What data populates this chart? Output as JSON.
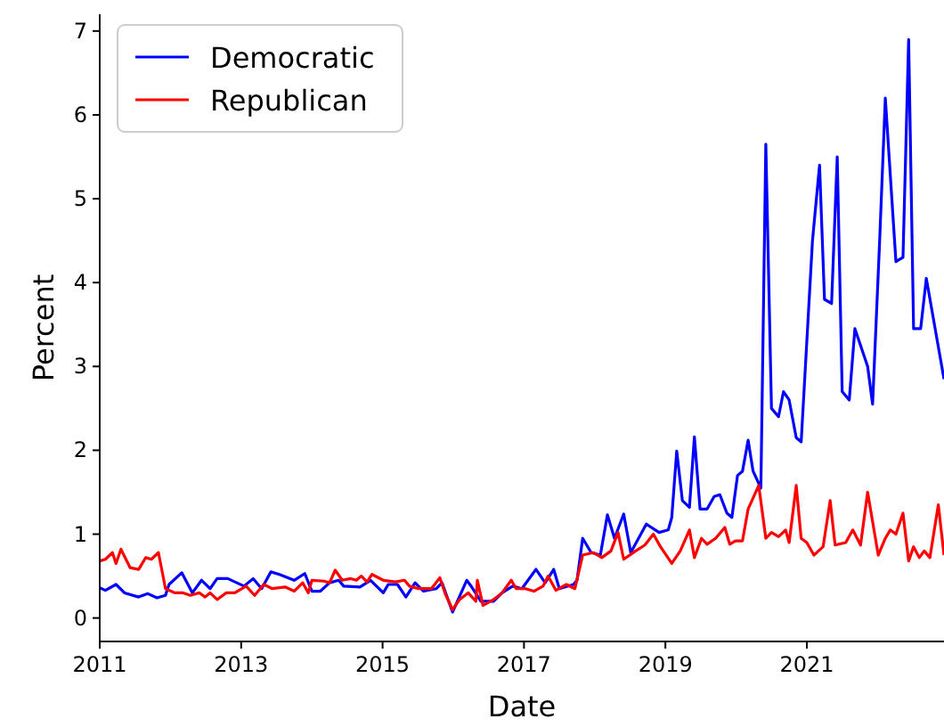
{
  "chart_data": {
    "type": "line",
    "xlabel": "Date",
    "ylabel": "Percent",
    "xlim": [
      2011,
      2022.94
    ],
    "xticks": [
      2011,
      2013,
      2015,
      2017,
      2019,
      2021
    ],
    "ylim": [
      -0.28,
      7.2
    ],
    "yticks": [
      0,
      1,
      2,
      3,
      4,
      5,
      6,
      7
    ],
    "legend": "top left",
    "grid": false,
    "line_style": "solid",
    "series": [
      {
        "name": "Democratic",
        "color": "#0000ff",
        "x": [
          2011.0,
          2011.08,
          2011.23,
          2011.35,
          2011.55,
          2011.68,
          2011.81,
          2011.93,
          2011.98,
          2012.16,
          2012.31,
          2012.44,
          2012.56,
          2012.66,
          2012.81,
          2013.04,
          2013.17,
          2013.29,
          2013.42,
          2013.54,
          2013.75,
          2013.9,
          2014.0,
          2014.12,
          2014.25,
          2014.38,
          2014.45,
          2014.68,
          2014.83,
          2015.01,
          2015.08,
          2015.21,
          2015.33,
          2015.46,
          2015.58,
          2015.76,
          2015.84,
          2015.99,
          2016.19,
          2016.26,
          2016.39,
          2016.57,
          2016.69,
          2016.84,
          2016.97,
          2017.17,
          2017.3,
          2017.42,
          2017.5,
          2017.7,
          2017.75,
          2017.83,
          2017.95,
          2018.08,
          2018.18,
          2018.28,
          2018.41,
          2018.51,
          2018.73,
          2018.91,
          2019.04,
          2019.09,
          2019.16,
          2019.24,
          2019.34,
          2019.41,
          2019.49,
          2019.59,
          2019.69,
          2019.77,
          2019.87,
          2019.94,
          2020.02,
          2020.09,
          2020.17,
          2020.24,
          2020.35,
          2020.42,
          2020.5,
          2020.6,
          2020.67,
          2020.75,
          2020.85,
          2020.92,
          2021.08,
          2021.18,
          2021.25,
          2021.35,
          2021.43,
          2021.5,
          2021.6,
          2021.68,
          2021.86,
          2021.93,
          2022.03,
          2022.11,
          2022.26,
          2022.36,
          2022.44,
          2022.51,
          2022.61,
          2022.69,
          2022.94
        ],
        "values": [
          0.36,
          0.33,
          0.4,
          0.3,
          0.25,
          0.29,
          0.24,
          0.27,
          0.4,
          0.54,
          0.3,
          0.45,
          0.35,
          0.47,
          0.47,
          0.38,
          0.47,
          0.35,
          0.55,
          0.52,
          0.45,
          0.53,
          0.32,
          0.32,
          0.42,
          0.45,
          0.38,
          0.37,
          0.45,
          0.3,
          0.4,
          0.4,
          0.25,
          0.42,
          0.32,
          0.35,
          0.42,
          0.07,
          0.45,
          0.37,
          0.2,
          0.2,
          0.3,
          0.38,
          0.35,
          0.58,
          0.42,
          0.58,
          0.35,
          0.4,
          0.45,
          0.95,
          0.78,
          0.75,
          1.23,
          0.95,
          1.24,
          0.78,
          1.12,
          1.02,
          1.05,
          1.2,
          1.99,
          1.4,
          1.32,
          2.16,
          1.3,
          1.3,
          1.45,
          1.47,
          1.25,
          1.2,
          1.7,
          1.75,
          2.12,
          1.75,
          1.55,
          5.65,
          2.5,
          2.4,
          2.7,
          2.6,
          2.15,
          2.1,
          4.5,
          5.4,
          3.8,
          3.75,
          5.5,
          2.7,
          2.6,
          3.45,
          3.0,
          2.55,
          4.5,
          6.2,
          4.25,
          4.3,
          6.9,
          3.45,
          3.45,
          4.05,
          2.85
        ]
      },
      {
        "name": "Republican",
        "color": "#ff0000",
        "x": [
          2011.0,
          2011.08,
          2011.18,
          2011.23,
          2011.3,
          2011.43,
          2011.55,
          2011.65,
          2011.73,
          2011.83,
          2011.93,
          2012.06,
          2012.18,
          2012.28,
          2012.41,
          2012.49,
          2012.56,
          2012.66,
          2012.79,
          2012.91,
          2013.07,
          2013.19,
          2013.32,
          2013.44,
          2013.62,
          2013.75,
          2013.87,
          2013.95,
          2014.0,
          2014.17,
          2014.25,
          2014.33,
          2014.43,
          2014.55,
          2014.63,
          2014.7,
          2014.78,
          2014.85,
          2015.01,
          2015.18,
          2015.31,
          2015.38,
          2015.51,
          2015.69,
          2015.81,
          2015.89,
          2015.99,
          2016.09,
          2016.21,
          2016.32,
          2016.34,
          2016.42,
          2016.57,
          2016.69,
          2016.82,
          2016.89,
          2017.02,
          2017.14,
          2017.27,
          2017.34,
          2017.45,
          2017.6,
          2017.72,
          2017.83,
          2017.98,
          2018.1,
          2018.23,
          2018.33,
          2018.41,
          2018.58,
          2018.71,
          2018.83,
          2018.93,
          2019.09,
          2019.21,
          2019.34,
          2019.41,
          2019.51,
          2019.59,
          2019.71,
          2019.84,
          2019.91,
          2019.99,
          2020.09,
          2020.17,
          2020.32,
          2020.42,
          2020.5,
          2020.6,
          2020.7,
          2020.75,
          2020.85,
          2020.92,
          2021.0,
          2021.1,
          2021.23,
          2021.33,
          2021.4,
          2021.55,
          2021.65,
          2021.76,
          2021.86,
          2022.01,
          2022.11,
          2022.18,
          2022.26,
          2022.36,
          2022.44,
          2022.51,
          2022.59,
          2022.66,
          2022.74,
          2022.86,
          2022.94
        ],
        "values": [
          0.68,
          0.7,
          0.78,
          0.65,
          0.82,
          0.6,
          0.58,
          0.72,
          0.7,
          0.78,
          0.35,
          0.3,
          0.3,
          0.27,
          0.3,
          0.25,
          0.3,
          0.22,
          0.3,
          0.3,
          0.38,
          0.27,
          0.4,
          0.35,
          0.37,
          0.32,
          0.42,
          0.3,
          0.45,
          0.44,
          0.42,
          0.57,
          0.45,
          0.47,
          0.45,
          0.5,
          0.43,
          0.52,
          0.45,
          0.43,
          0.45,
          0.38,
          0.35,
          0.35,
          0.48,
          0.28,
          0.1,
          0.22,
          0.3,
          0.2,
          0.45,
          0.15,
          0.22,
          0.3,
          0.45,
          0.35,
          0.35,
          0.32,
          0.38,
          0.5,
          0.33,
          0.4,
          0.35,
          0.75,
          0.78,
          0.72,
          0.8,
          1.02,
          0.7,
          0.8,
          0.87,
          1.0,
          0.85,
          0.65,
          0.8,
          1.05,
          0.72,
          0.95,
          0.88,
          0.95,
          1.08,
          0.88,
          0.92,
          0.92,
          1.3,
          1.58,
          0.95,
          1.02,
          0.97,
          1.05,
          0.9,
          1.58,
          0.95,
          0.9,
          0.75,
          0.85,
          1.4,
          0.87,
          0.9,
          1.05,
          0.87,
          1.5,
          0.75,
          0.95,
          1.05,
          1.0,
          1.25,
          0.68,
          0.85,
          0.72,
          0.8,
          0.72,
          1.35,
          0.75
        ]
      }
    ]
  }
}
